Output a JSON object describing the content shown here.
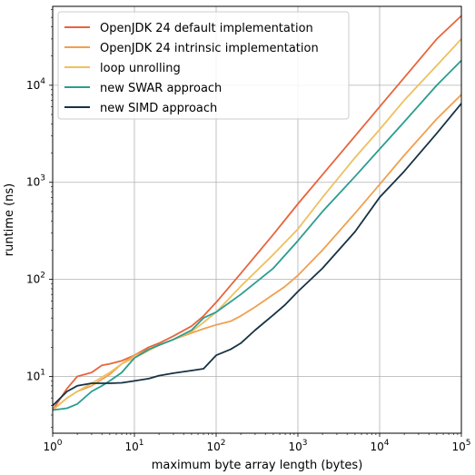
{
  "chart_data": {
    "type": "line",
    "xlabel": "maximum byte array length (bytes)",
    "ylabel": "runtime (ns)",
    "xscale": "log",
    "yscale": "log",
    "xlim": [
      1,
      100000
    ],
    "ylim": [
      2.6,
      65000
    ],
    "grid": true,
    "legend_position": "top-left",
    "x_ticks": [
      {
        "value": 1,
        "base": "10",
        "exp": "0"
      },
      {
        "value": 10,
        "base": "10",
        "exp": "1"
      },
      {
        "value": 100,
        "base": "10",
        "exp": "2"
      },
      {
        "value": 1000,
        "base": "10",
        "exp": "3"
      },
      {
        "value": 10000,
        "base": "10",
        "exp": "4"
      },
      {
        "value": 100000,
        "base": "10",
        "exp": "5"
      }
    ],
    "y_ticks": [
      {
        "value": 10,
        "base": "10",
        "exp": "1"
      },
      {
        "value": 100,
        "base": "10",
        "exp": "2"
      },
      {
        "value": 1000,
        "base": "10",
        "exp": "3"
      },
      {
        "value": 10000,
        "base": "10",
        "exp": "4"
      }
    ],
    "series": [
      {
        "name": "OpenJDK 24 default implementation",
        "color": "#e8643c",
        "x": [
          1,
          1.5,
          2,
          3,
          4,
          5,
          7,
          10,
          15,
          20,
          30,
          50,
          70,
          100,
          200,
          500,
          1000,
          2000,
          5000,
          10000,
          20000,
          50000,
          100000
        ],
        "y": [
          4.5,
          7.5,
          10,
          11,
          13,
          13.5,
          14.5,
          16.5,
          20,
          22,
          26,
          33,
          42,
          58,
          115,
          290,
          600,
          1200,
          3000,
          6000,
          12000,
          30000,
          52000
        ]
      },
      {
        "name": "OpenJDK 24 intrinsic implementation",
        "color": "#f0a050",
        "x": [
          1,
          1.5,
          2,
          3,
          5,
          7,
          10,
          15,
          20,
          30,
          50,
          70,
          100,
          150,
          200,
          300,
          500,
          700,
          1000,
          2000,
          5000,
          10000,
          20000,
          50000,
          100000
        ],
        "y": [
          4.5,
          6,
          7,
          8,
          10.5,
          13.5,
          16.5,
          19,
          21,
          24,
          28,
          31,
          34,
          37,
          42,
          52,
          70,
          85,
          110,
          200,
          480,
          950,
          1900,
          4500,
          8000
        ]
      },
      {
        "name": "loop unrolling",
        "color": "#eec060",
        "x": [
          1,
          1.5,
          2,
          3,
          5,
          7,
          10,
          15,
          20,
          30,
          50,
          70,
          100,
          200,
          500,
          1000,
          2000,
          5000,
          10000,
          20000,
          50000,
          100000
        ],
        "y": [
          4.5,
          6,
          7,
          8.5,
          11,
          13.5,
          15.5,
          18.5,
          21,
          24,
          29,
          36,
          46,
          85,
          180,
          330,
          700,
          1800,
          3500,
          7000,
          16000,
          30000
        ]
      },
      {
        "name": "new SWAR approach",
        "color": "#2a9d8f",
        "x": [
          1,
          1.5,
          2,
          3,
          4,
          5,
          7,
          10,
          15,
          20,
          30,
          50,
          70,
          100,
          200,
          500,
          1000,
          2000,
          5000,
          10000,
          20000,
          50000,
          100000
        ],
        "y": [
          4.5,
          4.7,
          5.2,
          7,
          8,
          9,
          11,
          15.5,
          19,
          21,
          24,
          30,
          40,
          46,
          70,
          130,
          250,
          500,
          1150,
          2200,
          4200,
          10000,
          18000
        ]
      },
      {
        "name": "new SIMD approach",
        "color": "#173244",
        "x": [
          1,
          1.5,
          2,
          3,
          5,
          7,
          10,
          15,
          20,
          30,
          50,
          70,
          100,
          150,
          200,
          300,
          500,
          700,
          1000,
          2000,
          5000,
          10000,
          20000,
          50000,
          100000
        ],
        "y": [
          5,
          7,
          8,
          8.5,
          8.5,
          8.6,
          9,
          9.5,
          10.2,
          10.8,
          11.5,
          12,
          16.5,
          19,
          22,
          30,
          43,
          55,
          75,
          130,
          310,
          700,
          1300,
          3200,
          6500
        ]
      }
    ]
  }
}
